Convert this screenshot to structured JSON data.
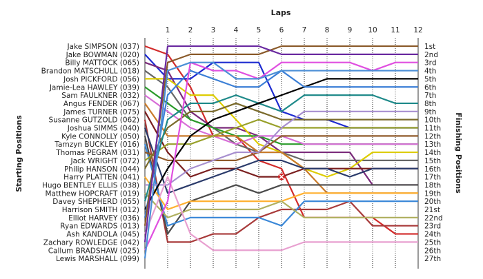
{
  "chart_data": {
    "type": "line",
    "title": "",
    "xlabel": "Laps",
    "ylabel_left": "Starting Positions",
    "ylabel_right": "Finishing Positions",
    "x": [
      0,
      1,
      2,
      3,
      4,
      5,
      6,
      7,
      8,
      9,
      10,
      11,
      12
    ],
    "x_tick_labels": [
      "1",
      "2",
      "3",
      "4",
      "5",
      "6",
      "7",
      "8",
      "9",
      "10",
      "11",
      "12"
    ],
    "y_range": [
      1,
      27
    ],
    "y_reversed": true,
    "grid": "vertical",
    "finishing_labels": [
      "1st",
      "2nd",
      "3rd",
      "4th",
      "5th",
      "6th",
      "7th",
      "8th",
      "9th",
      "10th",
      "11th",
      "12th",
      "13th",
      "14th",
      "15th",
      "16th",
      "17th",
      "18th",
      "19th",
      "20th",
      "21st",
      "22nd",
      "23rd",
      "24th",
      "25th",
      "26th",
      "27th"
    ],
    "annotation": {
      "type": "x-marker",
      "x": 6,
      "y": 17,
      "color": "#cc2222"
    },
    "series": [
      {
        "name": "Jake SIMPSON (037)",
        "color": "#d22b2b",
        "values": [
          1,
          2,
          6,
          12,
          12,
          15,
          16,
          22,
          22,
          22,
          22,
          24,
          24
        ]
      },
      {
        "name": "Jake BOWMAN (020)",
        "color": "#1d2bd0",
        "values": [
          2,
          5,
          5,
          3,
          3,
          3,
          9,
          10,
          10,
          11,
          11,
          11,
          11
        ]
      },
      {
        "name": "Billy MATTOCK (065)",
        "color": "#7a2a7a",
        "values": [
          3,
          4,
          9,
          11,
          11,
          12,
          14,
          14,
          14,
          14,
          18,
          18,
          18
        ]
      },
      {
        "name": "Brandon MATSCHULL (018)",
        "color": "#666666",
        "values": [
          4,
          6,
          10,
          11,
          13,
          14,
          14,
          15,
          15,
          15,
          15,
          15,
          15
        ]
      },
      {
        "name": "Josh PICKFORD (056)",
        "color": "#ddcc00",
        "values": [
          5,
          5,
          7,
          7,
          10,
          13,
          14,
          16,
          17,
          16,
          14,
          14,
          14
        ]
      },
      {
        "name": "Jamie-Lea HAWLEY (039)",
        "color": "#2a9b2a",
        "values": [
          6,
          8,
          10,
          11,
          12,
          12,
          13,
          13,
          13,
          13,
          13,
          13,
          13
        ]
      },
      {
        "name": "Sam FAULKNER (032)",
        "color": "#d76ed7",
        "values": [
          7,
          9,
          11,
          12,
          13,
          12,
          12,
          13,
          13,
          13,
          13,
          13,
          13
        ]
      },
      {
        "name": "Angus FENDER (067)",
        "color": "#c87a2a",
        "values": [
          8,
          12,
          12,
          12,
          12,
          14,
          14,
          16,
          19,
          19,
          19,
          19,
          19
        ]
      },
      {
        "name": "James TURNER (075)",
        "color": "#7a1f1f",
        "values": [
          9,
          14,
          17,
          16,
          16,
          17,
          17,
          16,
          16,
          16,
          16,
          16,
          16
        ]
      },
      {
        "name": "Susanne GUTZOLD (062)",
        "color": "#a83a3a",
        "values": [
          10,
          25,
          25,
          24,
          24,
          22,
          21,
          21,
          21,
          20,
          23,
          23,
          23
        ]
      },
      {
        "name": "Joshua SIMMS (040)",
        "color": "#2a3a6a",
        "values": [
          11,
          19,
          18,
          17,
          16,
          15,
          15,
          16,
          16,
          17,
          16,
          16,
          16
        ]
      },
      {
        "name": "Kyle CONNOLLY (050)",
        "color": "#4a4a4a",
        "values": [
          12,
          24,
          20,
          19,
          18,
          19,
          18,
          18,
          18,
          18,
          18,
          18,
          18
        ]
      },
      {
        "name": "Tamzyn BUCKLEY (016)",
        "color": "#3b88d8",
        "values": [
          13,
          23,
          22,
          22,
          22,
          22,
          23,
          20,
          20,
          20,
          20,
          20,
          20
        ]
      },
      {
        "name": "Thomas PEGRAM (031)",
        "color": "#8f5a2a",
        "values": [
          14,
          15,
          15,
          15,
          15,
          14,
          12,
          12,
          12,
          12,
          12,
          12,
          12
        ]
      },
      {
        "name": "Jack WRIGHT (072)",
        "color": "#98a02a",
        "values": [
          15,
          13,
          13,
          12,
          11,
          10,
          11,
          11,
          11,
          11,
          11,
          11,
          11
        ]
      },
      {
        "name": "Philip HANSON (044)",
        "color": "#7a6a2a",
        "values": [
          16,
          11,
          9,
          9,
          8,
          9,
          10,
          10,
          10,
          10,
          10,
          10,
          10
        ]
      },
      {
        "name": "Harry PLATTEN (041)",
        "color": "#ffb030",
        "values": [
          17,
          21,
          20,
          20,
          20,
          20,
          20,
          19,
          19,
          19,
          19,
          19,
          19
        ]
      },
      {
        "name": "Hugo BENTLEY ELLIS (038)",
        "color": "#a78fcf",
        "values": [
          18,
          18,
          16,
          15,
          14,
          14,
          11,
          9,
          9,
          9,
          9,
          9,
          9
        ]
      },
      {
        "name": "Matthew HOPCRAFT (019)",
        "color": "#b0b060",
        "values": [
          19,
          22,
          21,
          21,
          21,
          21,
          20,
          22,
          22,
          22,
          22,
          22,
          22
        ]
      },
      {
        "name": "Davey SHEPHERD (055)",
        "color": "#1f8a8a",
        "values": [
          20,
          10,
          8,
          8,
          7,
          8,
          9,
          7,
          7,
          7,
          7,
          8,
          8
        ]
      },
      {
        "name": "Harrison SMITH (012)",
        "color": "#000000",
        "values": [
          21,
          16,
          12,
          10,
          9,
          8,
          7,
          6,
          5,
          5,
          5,
          5,
          5
        ]
      },
      {
        "name": "Elliot HARVEY (036)",
        "color": "#3b7fd6",
        "values": [
          22,
          7,
          4,
          5,
          6,
          6,
          4,
          6,
          6,
          6,
          6,
          6,
          6
        ]
      },
      {
        "name": "Ryan EDWARDS (013)",
        "color": "#8a5a2a",
        "values": [
          23,
          3,
          2,
          2,
          2,
          2,
          1,
          1,
          1,
          1,
          1,
          1,
          1
        ]
      },
      {
        "name": "Ash KANDOLA (045)",
        "color": "#e8a0d0",
        "values": [
          24,
          17,
          24,
          26,
          26,
          26,
          26,
          25,
          25,
          25,
          25,
          25,
          25
        ]
      },
      {
        "name": "Zachary ROWLEDGE (042)",
        "color": "#6a2aa0",
        "values": [
          25,
          1,
          1,
          1,
          1,
          1,
          2,
          2,
          2,
          2,
          2,
          2,
          2
        ]
      },
      {
        "name": "Callum BRADSHAW (025)",
        "color": "#e050e0",
        "values": [
          26,
          20,
          3,
          4,
          4,
          5,
          3,
          3,
          3,
          3,
          4,
          3,
          3
        ]
      },
      {
        "name": "Lewis MARSHALL (099)",
        "color": "#4b8fd6",
        "values": [
          27,
          4,
          3,
          3,
          5,
          5,
          4,
          4,
          4,
          4,
          4,
          4,
          4
        ]
      }
    ]
  }
}
